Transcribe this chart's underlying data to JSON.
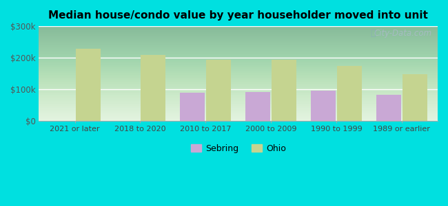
{
  "title": "Median house/condo value by year householder moved into unit",
  "categories": [
    "2021 or later",
    "2018 to 2020",
    "2010 to 2017",
    "2000 to 2009",
    "1990 to 1999",
    "1989 or earlier"
  ],
  "sebring_values": [
    null,
    null,
    90000,
    92000,
    97000,
    83000
  ],
  "ohio_values": [
    228000,
    208000,
    193000,
    193000,
    175000,
    148000
  ],
  "sebring_color": "#c9a8d5",
  "ohio_color": "#c5d490",
  "ylim": [
    0,
    300000
  ],
  "yticks": [
    0,
    100000,
    200000,
    300000
  ],
  "ytick_labels": [
    "$0",
    "$100k",
    "$200k",
    "$300k"
  ],
  "plot_bg_bottom": "#b8ddb0",
  "plot_bg_top": "#f0f8f0",
  "outer_bg": "#00e0e0",
  "bar_width": 0.38,
  "legend_labels": [
    "Sebring",
    "Ohio"
  ],
  "watermark": "City-Data.com"
}
